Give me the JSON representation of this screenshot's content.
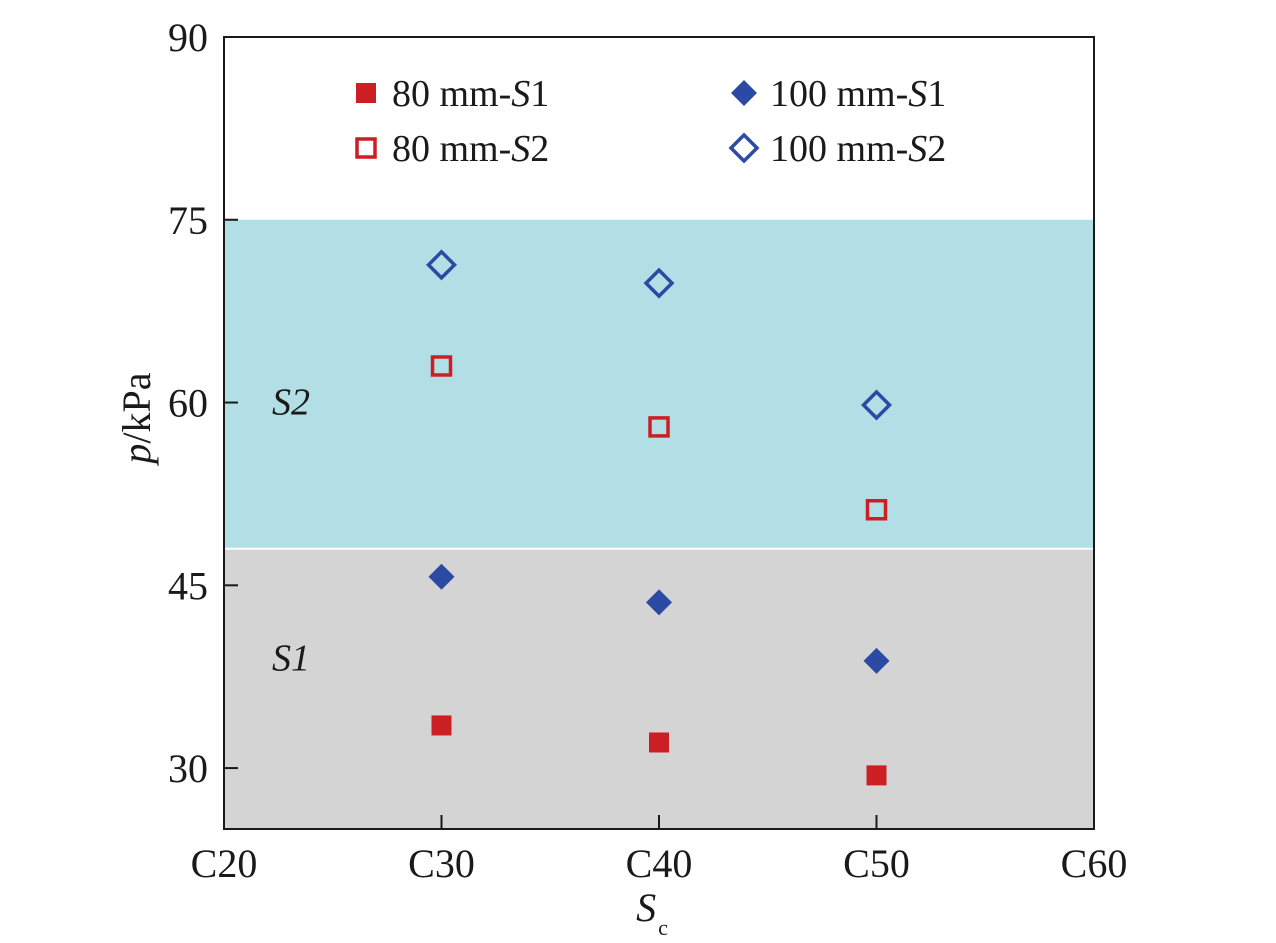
{
  "chart_data": {
    "type": "scatter",
    "categories": [
      "C20",
      "C30",
      "C40",
      "C50",
      "C60"
    ],
    "xlabel": {
      "main": "S",
      "sub": "c"
    },
    "ylabel": {
      "italic": "p",
      "rest": "/kPa"
    },
    "ylim": [
      25,
      90
    ],
    "yticks": [
      30,
      45,
      60,
      75,
      90
    ],
    "grid": false,
    "legend_position": "top",
    "regions": [
      {
        "label": "S1",
        "from": 25,
        "to": 48,
        "color": "#d4d4d4"
      },
      {
        "label": "S2",
        "from": 48,
        "to": 75,
        "color": "#b2dfe6"
      }
    ],
    "series": [
      {
        "label_prefix": "80 mm-",
        "label_suffix": "S1",
        "marker": "square",
        "filled": true,
        "color": "#cc1f24",
        "points": [
          {
            "x": "C30",
            "y": 33.5
          },
          {
            "x": "C40",
            "y": 32.1
          },
          {
            "x": "C50",
            "y": 29.4
          }
        ]
      },
      {
        "label_prefix": "80 mm-",
        "label_suffix": "S2",
        "marker": "square",
        "filled": false,
        "color": "#cc1f24",
        "points": [
          {
            "x": "C30",
            "y": 63.0
          },
          {
            "x": "C40",
            "y": 58.0
          },
          {
            "x": "C50",
            "y": 51.2
          }
        ]
      },
      {
        "label_prefix": "100 mm-",
        "label_suffix": "S1",
        "marker": "diamond",
        "filled": true,
        "color": "#2b4aa3",
        "points": [
          {
            "x": "C30",
            "y": 45.7
          },
          {
            "x": "C40",
            "y": 43.6
          },
          {
            "x": "C50",
            "y": 38.8
          }
        ]
      },
      {
        "label_prefix": "100 mm-",
        "label_suffix": "S2",
        "marker": "diamond",
        "filled": false,
        "color": "#2b4aa3",
        "points": [
          {
            "x": "C30",
            "y": 71.3
          },
          {
            "x": "C40",
            "y": 69.8
          },
          {
            "x": "C50",
            "y": 59.8
          }
        ]
      }
    ]
  }
}
